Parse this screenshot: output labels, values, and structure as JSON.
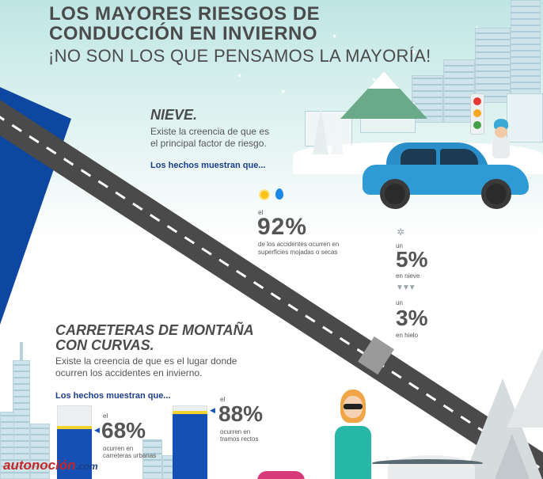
{
  "header": {
    "title_line1": "LOS MAYORES RIESGOS DE",
    "title_line2": "CONDUCCIÓN EN INVIERNO",
    "subtitle": "¡NO SON LOS QUE PENSAMOS LA MAYORÍA!"
  },
  "snow_section": {
    "title": "NIEVE.",
    "belief_line1": "Existe la creencia de que es",
    "belief_line2": "el principal factor de riesgo.",
    "facts_label": "Los hechos muestran que...",
    "stat_main": {
      "prefix": "el",
      "value": "92%",
      "desc_line1": "de los accidentes ocurren en",
      "desc_line2": "superficies mojadas o secas"
    },
    "stat_snow": {
      "prefix": "un",
      "value": "5%",
      "desc": "en nieve"
    },
    "stat_ice": {
      "prefix": "un",
      "value": "3%",
      "desc": "en hielo"
    }
  },
  "mountain_section": {
    "title_line1": "CARRETERAS DE MONTAÑA",
    "title_line2": "CON CURVAS.",
    "belief_line1": "Existe la creencia de que es el lugar donde",
    "belief_line2": "ocurren los accidentes en invierno.",
    "facts_label": "Los hechos muestran que...",
    "stat_urban": {
      "prefix": "el",
      "value": "68%",
      "desc_line1": "ocurren en",
      "desc_line2": "carreteras urbanas",
      "fill": 0.68
    },
    "stat_straight": {
      "prefix": "el",
      "value": "88%",
      "desc_line1": "ocurren en",
      "desc_line2": "tramos rectos",
      "fill": 0.88
    }
  },
  "watermark": {
    "brand": "autonoción",
    "domain": ".com"
  },
  "colors": {
    "title": "#4b4b4b",
    "accent_blue": "#1550b4",
    "car_blue": "#2a8ec9",
    "sky": "#bfe6e4",
    "road": "#4a4a4a"
  },
  "icons": [
    "sun-icon",
    "water-drop-icon",
    "snowflake-icon",
    "icicle-icon",
    "traffic-light-icon",
    "car-illustration",
    "woman-illustration",
    "child-illustration"
  ]
}
